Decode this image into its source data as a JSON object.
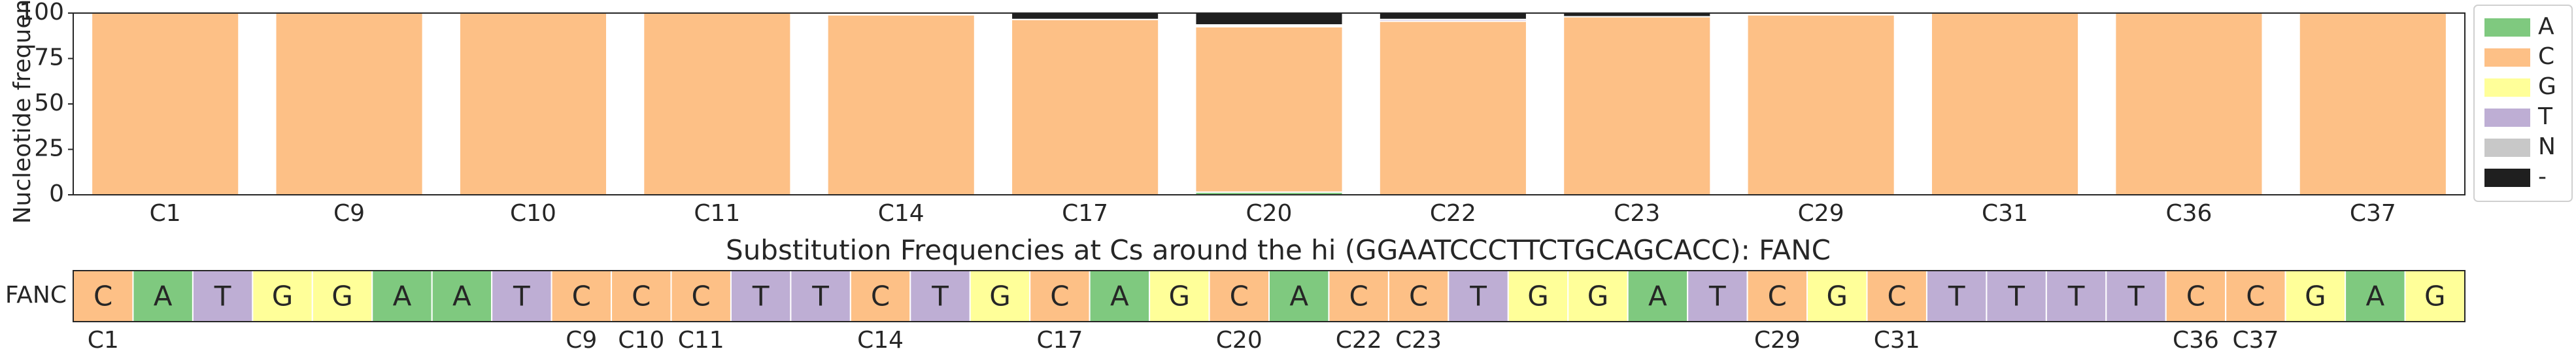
{
  "chart_data": [
    {
      "type": "bar",
      "stacked": true,
      "ylabel": "Nucleotide frequency",
      "xlabel": "",
      "ylim": [
        0,
        100
      ],
      "yticks": [
        0,
        25,
        50,
        75,
        100
      ],
      "grid": false,
      "legend": "right",
      "categories": [
        "C1",
        "C9",
        "C10",
        "C11",
        "C14",
        "C17",
        "C20",
        "C22",
        "C23",
        "C29",
        "C31",
        "C36",
        "C37"
      ],
      "series": [
        {
          "name": "A",
          "color": "#7fc97f",
          "values": [
            0,
            0,
            0,
            0,
            0,
            0,
            1.5,
            0,
            0,
            0,
            0,
            0,
            0
          ]
        },
        {
          "name": "C",
          "color": "#fdc086",
          "values": [
            100,
            100,
            100,
            100,
            99,
            96.5,
            91,
            95.5,
            98,
            99,
            100,
            100,
            100
          ]
        },
        {
          "name": "G",
          "color": "#ffff99",
          "values": [
            0,
            0,
            0,
            0,
            0,
            0,
            0.5,
            0,
            0,
            0,
            0,
            0,
            0
          ]
        },
        {
          "name": "T",
          "color": "#beaed4",
          "values": [
            0,
            0,
            0,
            0,
            0,
            0,
            0.5,
            1,
            0,
            0,
            0,
            0,
            0
          ]
        },
        {
          "name": "N",
          "color": "#c8c8c8",
          "values": [
            0,
            0,
            0,
            0,
            0,
            0,
            0,
            0,
            0,
            0,
            0,
            0,
            0
          ]
        },
        {
          "name": "-",
          "color": "#1f1f1f",
          "values": [
            0,
            0,
            0,
            0,
            0,
            3.5,
            6.5,
            3.5,
            2,
            0,
            0,
            0,
            0
          ]
        }
      ]
    },
    {
      "type": "table",
      "title": "Substitution Frequencies at Cs around the hi (GGAATCCCTTCTGCAGCACC): FANC",
      "row_label": "FANC",
      "sequence": [
        "C",
        "A",
        "T",
        "G",
        "G",
        "A",
        "A",
        "T",
        "C",
        "C",
        "C",
        "T",
        "T",
        "C",
        "T",
        "G",
        "C",
        "A",
        "G",
        "C",
        "A",
        "C",
        "C",
        "T",
        "G",
        "G",
        "A",
        "T",
        "C",
        "G",
        "C",
        "T",
        "T",
        "T",
        "T",
        "C",
        "C",
        "G",
        "A",
        "G"
      ],
      "highlighted_positions": [
        {
          "label": "C1",
          "index": 0
        },
        {
          "label": "C9",
          "index": 8
        },
        {
          "label": "C10",
          "index": 9
        },
        {
          "label": "C11",
          "index": 10
        },
        {
          "label": "C14",
          "index": 13
        },
        {
          "label": "C17",
          "index": 16
        },
        {
          "label": "C20",
          "index": 19
        },
        {
          "label": "C22",
          "index": 21
        },
        {
          "label": "C23",
          "index": 22
        },
        {
          "label": "C29",
          "index": 28
        },
        {
          "label": "C31",
          "index": 30
        },
        {
          "label": "C36",
          "index": 35
        },
        {
          "label": "C37",
          "index": 36
        }
      ],
      "base_colors": {
        "A": "#7fc97f",
        "C": "#fdc086",
        "G": "#ffff99",
        "T": "#beaed4",
        "N": "#c8c8c8",
        "-": "#1f1f1f"
      }
    }
  ]
}
